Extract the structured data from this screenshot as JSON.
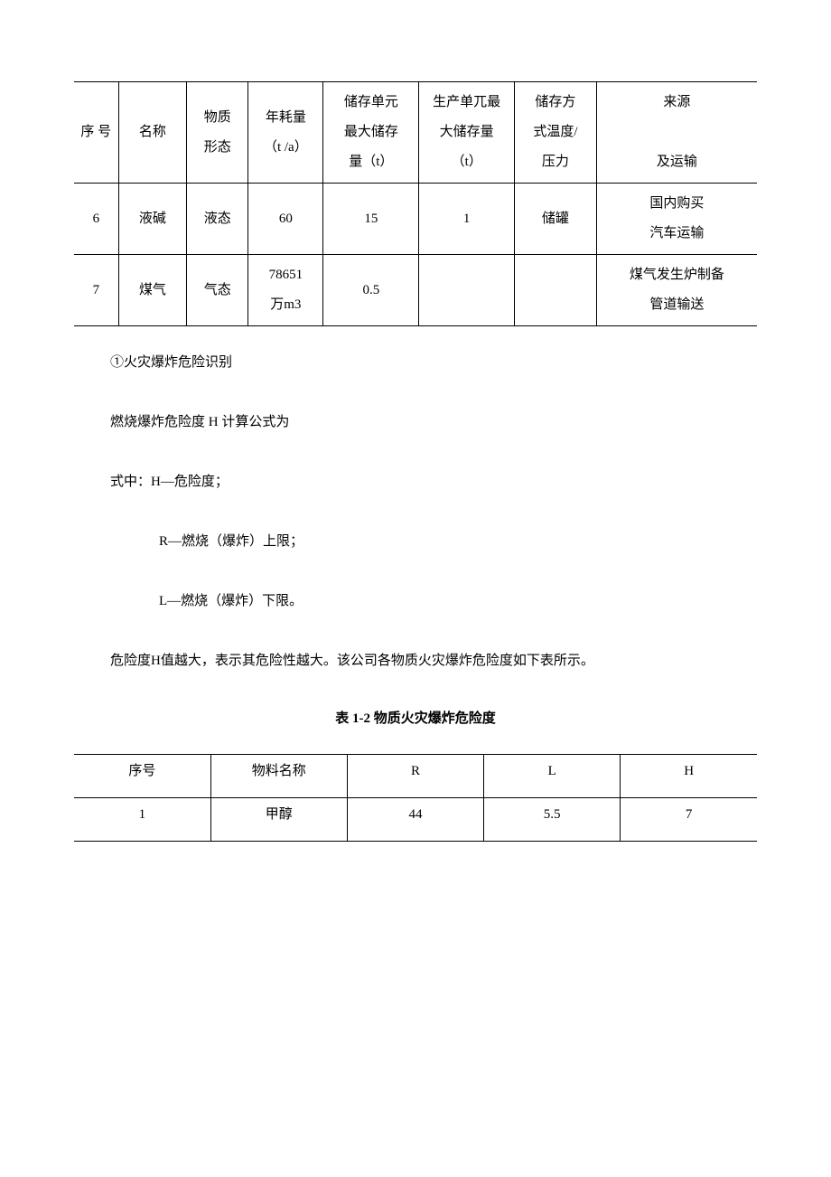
{
  "table1": {
    "headers": {
      "seq": "序\n号",
      "name": "名称",
      "form": "物质\n形态",
      "consumption": "年耗量\n（t /a）",
      "storage_unit": "储存单元\n最大储存\n量（t）",
      "prod_unit": "生产单兀最\n大储存量\n（t）",
      "method": "储存方\n式温度/\n压力",
      "source": "来源\n及运输"
    },
    "rows": [
      {
        "seq": "6",
        "name": "液碱",
        "form": "液态",
        "consumption": "60",
        "storage_unit": "15",
        "prod_unit": "1",
        "method": "储罐",
        "source_line1": "国内购买",
        "source_line2": "汽车运输"
      },
      {
        "seq": "7",
        "name": "煤气",
        "form": "气态",
        "consumption_line1": "78651",
        "consumption_line2": "万m3",
        "storage_unit": "0.5",
        "prod_unit": "",
        "method": "",
        "source_line1": "煤气发生炉制备",
        "source_line2": "管道输送"
      }
    ]
  },
  "text": {
    "line1": "①火灾爆炸危险识别",
    "line2": "燃烧爆炸危险度 H 计算公式为",
    "line3": "式中：H—危险度；",
    "line4": "R—燃烧（爆炸）上限；",
    "line5": "L—燃烧（爆炸）下限。",
    "line6": "危险度H值越大，表示其危险性越大。该公司各物质火灾爆炸危险度如下表所示。",
    "caption": "表 1-2 物质火灾爆炸危险度"
  },
  "table2": {
    "headers": {
      "seq": "序号",
      "name": "物料名称",
      "r": "R",
      "l": "L",
      "h": "H"
    },
    "rows": [
      {
        "seq": "1",
        "name": "甲醇",
        "r": "44",
        "l": "5.5",
        "h": "7"
      }
    ]
  }
}
